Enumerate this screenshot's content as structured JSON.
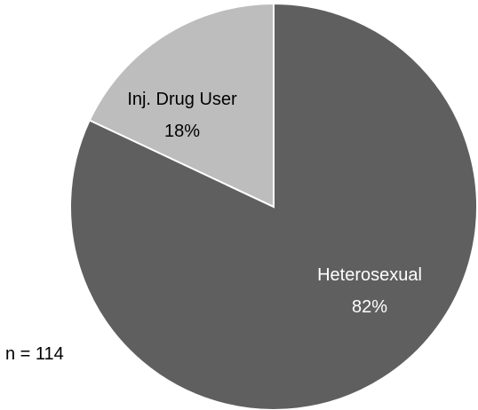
{
  "chart_data": {
    "type": "pie",
    "slices": [
      {
        "label": "Heterosexual",
        "value": 82,
        "value_label": "82%",
        "color": "#5f5f5f",
        "text_color": "#ffffff"
      },
      {
        "label": "Inj. Drug User",
        "value": 18,
        "value_label": "18%",
        "color": "#bdbdbd",
        "text_color": "#000000"
      }
    ],
    "start": "top, clockwise",
    "slice_border_color": "#ffffff",
    "annotation": "n = 114"
  }
}
